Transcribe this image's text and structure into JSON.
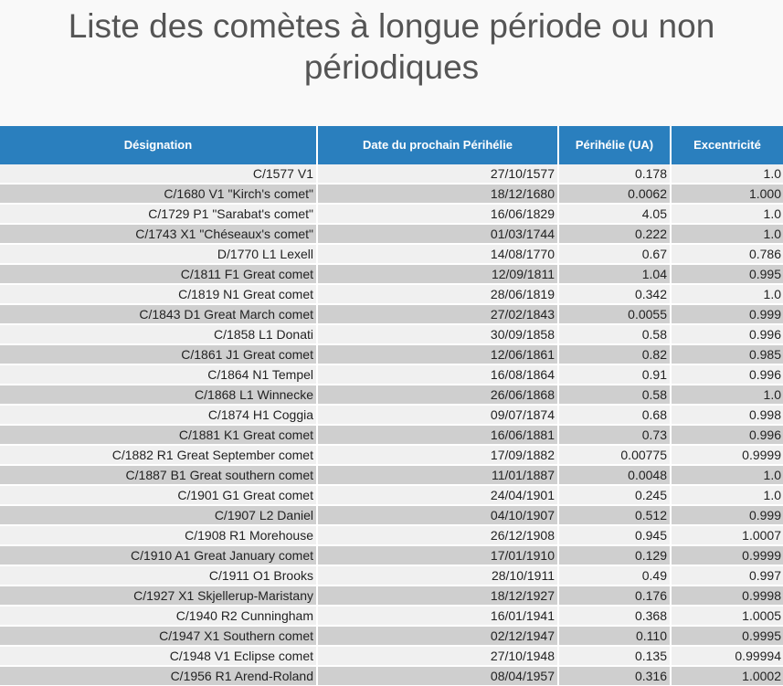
{
  "title": "Liste des comètes à longue période ou non périodiques",
  "table": {
    "headers": [
      "Désignation",
      "Date du prochain Périhélie",
      "Périhélie (UA)",
      "Excentricité"
    ],
    "rows": [
      [
        "C/1577 V1",
        "27/10/1577",
        "0.178",
        "1.0"
      ],
      [
        "C/1680 V1 \"Kirch's comet\"",
        "18/12/1680",
        "0.0062",
        "1.000"
      ],
      [
        "C/1729 P1 \"Sarabat's comet\"",
        "16/06/1829",
        "4.05",
        "1.0"
      ],
      [
        "C/1743 X1 \"Chéseaux's comet\"",
        "01/03/1744",
        "0.222",
        "1.0"
      ],
      [
        "D/1770 L1 Lexell",
        "14/08/1770",
        "0.67",
        "0.786"
      ],
      [
        "C/1811 F1 Great comet",
        "12/09/1811",
        "1.04",
        "0.995"
      ],
      [
        "C/1819 N1 Great comet",
        "28/06/1819",
        "0.342",
        "1.0"
      ],
      [
        "C/1843 D1 Great March comet",
        "27/02/1843",
        "0.0055",
        "0.999"
      ],
      [
        "C/1858 L1 Donati",
        "30/09/1858",
        "0.58",
        "0.996"
      ],
      [
        "C/1861 J1 Great comet",
        "12/06/1861",
        "0.82",
        "0.985"
      ],
      [
        "C/1864 N1 Tempel",
        "16/08/1864",
        "0.91",
        "0.996"
      ],
      [
        "C/1868 L1 Winnecke",
        "26/06/1868",
        "0.58",
        "1.0"
      ],
      [
        "C/1874 H1 Coggia",
        "09/07/1874",
        "0.68",
        "0.998"
      ],
      [
        "C/1881 K1 Great comet",
        "16/06/1881",
        "0.73",
        "0.996"
      ],
      [
        "C/1882 R1 Great September comet",
        "17/09/1882",
        "0.00775",
        "0.9999"
      ],
      [
        "C/1887 B1 Great southern comet",
        "11/01/1887",
        "0.0048",
        "1.0"
      ],
      [
        "C/1901 G1 Great comet",
        "24/04/1901",
        "0.245",
        "1.0"
      ],
      [
        "C/1907 L2 Daniel",
        "04/10/1907",
        "0.512",
        "0.999"
      ],
      [
        "C/1908 R1 Morehouse",
        "26/12/1908",
        "0.945",
        "1.0007"
      ],
      [
        "C/1910 A1 Great January comet",
        "17/01/1910",
        "0.129",
        "0.9999"
      ],
      [
        "C/1911 O1 Brooks",
        "28/10/1911",
        "0.49",
        "0.997"
      ],
      [
        "C/1927 X1 Skjellerup-Maristany",
        "18/12/1927",
        "0.176",
        "0.9998"
      ],
      [
        "C/1940 R2 Cunningham",
        "16/01/1941",
        "0.368",
        "1.0005"
      ],
      [
        "C/1947 X1 Southern comet",
        "02/12/1947",
        "0.110",
        "0.9995"
      ],
      [
        "C/1948 V1 Eclipse comet",
        "27/10/1948",
        "0.135",
        "0.99994"
      ],
      [
        "C/1956 R1 Arend-Roland",
        "08/04/1957",
        "0.316",
        "1.0002"
      ]
    ]
  },
  "colors": {
    "header_bg": "#2a7fbe",
    "row_light": "#f0f0f0",
    "row_dark": "#cfcfcf",
    "title_text": "#555555"
  }
}
